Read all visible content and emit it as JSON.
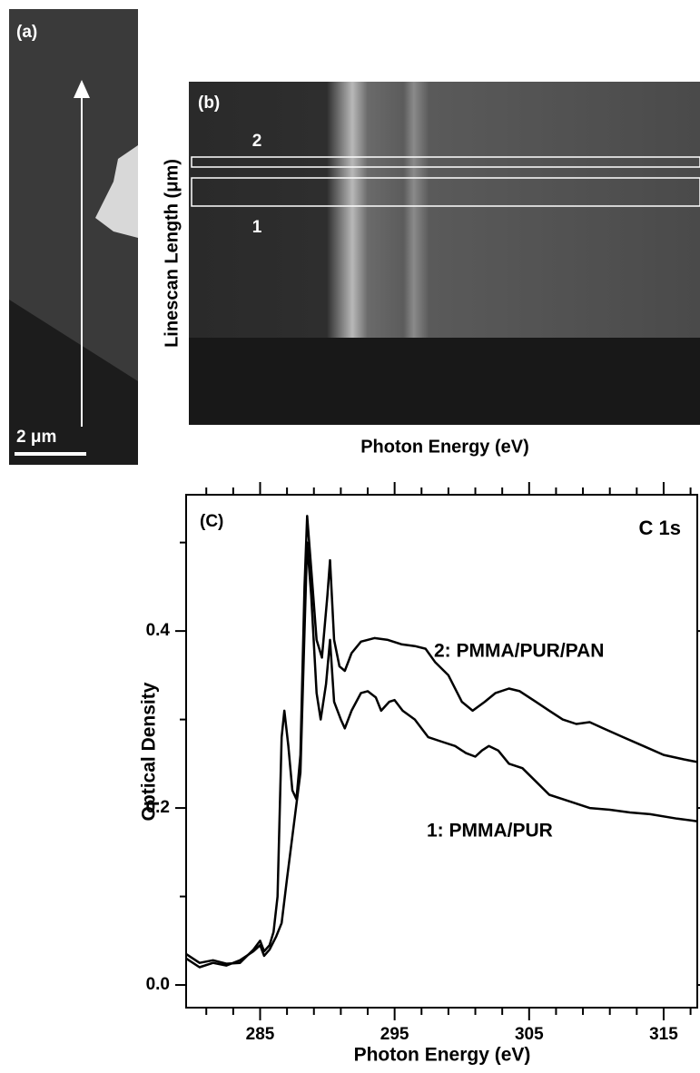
{
  "panel_a": {
    "label": "(a)",
    "scale_bar": "2 μm"
  },
  "panel_b": {
    "label": "(b)",
    "box_labels": [
      "2",
      "1"
    ],
    "ylabel": "Linescan Length (μm)",
    "xlabel": "Photon Energy (eV)"
  },
  "chart_data": {
    "type": "line",
    "panel_label": "(C)",
    "title": "C 1s",
    "xlabel": "Photon Energy (eV)",
    "ylabel": "Optical Density",
    "xlim": [
      279.5,
      317.5
    ],
    "ylim": [
      -0.0256,
      0.554
    ],
    "xticks": [
      285,
      295,
      305,
      315
    ],
    "xminor_ticks": [
      281,
      283,
      287,
      289,
      291,
      293,
      297,
      299,
      301,
      303,
      307,
      309,
      311,
      313,
      317
    ],
    "yticks": [
      {
        "value": 0,
        "label": "0.0"
      },
      0.2,
      0.4
    ],
    "yminor_ticks": [
      0.1,
      0.3,
      0.5
    ],
    "series": [
      {
        "name": "2: PMMA/PUR/PAN",
        "color": "#000000",
        "x": [
          279.5,
          280.5,
          281.5,
          282.5,
          283.5,
          284.5,
          285,
          285.3,
          285.7,
          286,
          286.3,
          286.6,
          286.8,
          287.1,
          287.4,
          287.7,
          288,
          288.3,
          288.5,
          288.8,
          289.2,
          289.6,
          290,
          290.2,
          290.5,
          290.9,
          291.3,
          291.8,
          292.5,
          293.5,
          294.5,
          295.5,
          296.5,
          297.3,
          298,
          299,
          300,
          300.8,
          301.7,
          302.5,
          303.5,
          304.3,
          305.5,
          306.5,
          307.5,
          308.5,
          309.5,
          310.5,
          312,
          313.5,
          315,
          316.5,
          317.5
        ],
        "values": [
          0.035,
          0.025,
          0.028,
          0.024,
          0.025,
          0.04,
          0.05,
          0.038,
          0.045,
          0.06,
          0.1,
          0.28,
          0.31,
          0.27,
          0.22,
          0.21,
          0.26,
          0.45,
          0.53,
          0.47,
          0.39,
          0.37,
          0.44,
          0.48,
          0.39,
          0.36,
          0.355,
          0.375,
          0.388,
          0.392,
          0.39,
          0.385,
          0.383,
          0.38,
          0.365,
          0.35,
          0.32,
          0.31,
          0.32,
          0.33,
          0.335,
          0.332,
          0.32,
          0.31,
          0.3,
          0.295,
          0.297,
          0.29,
          0.28,
          0.27,
          0.26,
          0.255,
          0.252
        ]
      },
      {
        "name": "1: PMMA/PUR",
        "color": "#000000",
        "x": [
          279.5,
          280.5,
          281.5,
          282.5,
          283.5,
          284.5,
          285,
          285.3,
          285.7,
          286.2,
          286.6,
          287,
          287.5,
          288,
          288.3,
          288.5,
          288.8,
          289.2,
          289.5,
          289.9,
          290.2,
          290.5,
          291,
          291.3,
          291.8,
          292.5,
          293,
          293.6,
          294,
          294.6,
          295,
          295.6,
          296.5,
          297.5,
          298.5,
          299.5,
          300.3,
          301,
          301.5,
          302,
          302.7,
          303.5,
          304.5,
          305.5,
          306.5,
          307.5,
          308.5,
          309.5,
          311,
          312.5,
          314,
          316,
          317.5
        ],
        "values": [
          0.03,
          0.02,
          0.025,
          0.022,
          0.028,
          0.038,
          0.045,
          0.033,
          0.04,
          0.055,
          0.07,
          0.12,
          0.18,
          0.24,
          0.4,
          0.5,
          0.44,
          0.33,
          0.3,
          0.34,
          0.39,
          0.32,
          0.3,
          0.29,
          0.31,
          0.33,
          0.332,
          0.325,
          0.31,
          0.32,
          0.322,
          0.31,
          0.3,
          0.28,
          0.275,
          0.27,
          0.262,
          0.258,
          0.265,
          0.27,
          0.265,
          0.25,
          0.245,
          0.23,
          0.215,
          0.21,
          0.205,
          0.2,
          0.198,
          0.195,
          0.193,
          0.188,
          0.185
        ]
      }
    ]
  }
}
